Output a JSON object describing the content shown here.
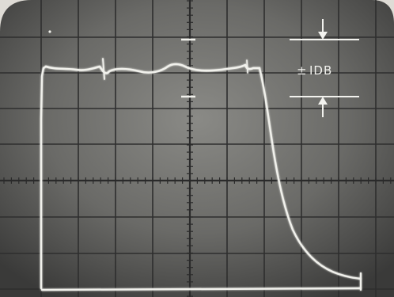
{
  "photo": {
    "annotation_label": "IDB",
    "annotation_symbol": "±"
  },
  "colors": {
    "background": "#dfdcd6",
    "screen": "#6b6b6b",
    "grid": "#2f2f2f",
    "trace": "#f1f1ec"
  }
}
